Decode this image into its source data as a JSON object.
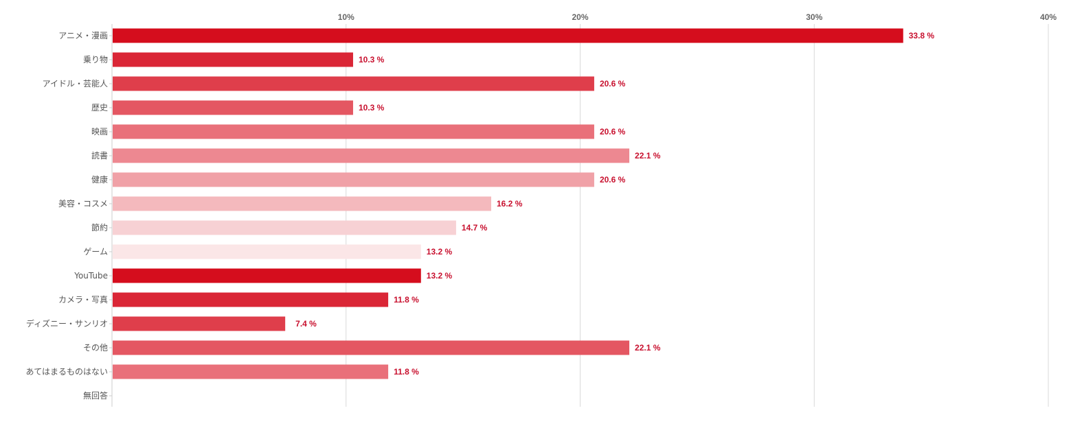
{
  "chart_data": {
    "type": "bar",
    "orientation": "horizontal",
    "categories": [
      "アニメ・漫画",
      "乗り物",
      "アイドル・芸能人",
      "歴史",
      "映画",
      "読書",
      "健康",
      "美容・コスメ",
      "節約",
      "ゲーム",
      "YouTube",
      "カメラ・写真",
      "ディズニー・サンリオ",
      "その他",
      "あてはまるものはない",
      "無回答"
    ],
    "values": [
      33.8,
      10.3,
      20.6,
      10.3,
      20.6,
      22.1,
      20.6,
      16.2,
      14.7,
      13.2,
      13.2,
      11.8,
      7.4,
      22.1,
      11.8,
      null
    ],
    "value_labels": [
      "33.8 %",
      "10.3 %",
      "20.6 %",
      "10.3 %",
      "20.6 %",
      "22.1 %",
      "20.6 %",
      "16.2 %",
      "14.7 %",
      "13.2 %",
      "13.2 %",
      "11.8 %",
      "7.4 %",
      "22.1 %",
      "11.8 %",
      ""
    ],
    "colors": [
      "#d50d1d",
      "#da2636",
      "#df3e4b",
      "#e45762",
      "#e9707a",
      "#ed8891",
      "#f0a1a7",
      "#f4b9bd",
      "#f7d1d4",
      "#fbe6e7",
      "#d50d1d",
      "#da2636",
      "#df3e4b",
      "#e45762",
      "#e9707a",
      "#ed8891"
    ],
    "xlim": [
      0,
      40
    ],
    "ticks": [
      10,
      20,
      30,
      40
    ],
    "tick_labels": [
      "10%",
      "20%",
      "30%",
      "40%"
    ],
    "title": "",
    "xlabel": "",
    "ylabel": "",
    "grid": true,
    "axis_position": "top",
    "label_color": "#c8102e",
    "grid_color": "#d9d9d9"
  }
}
